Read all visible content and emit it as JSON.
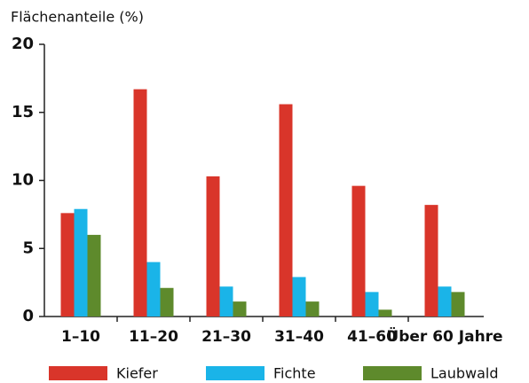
{
  "chart_data": {
    "type": "bar",
    "title": "Flächenanteile (%)",
    "categories": [
      "1–10",
      "11–20",
      "21–30",
      "31–40",
      "41–60",
      "Über 60 Jahre"
    ],
    "series": [
      {
        "name": "Kiefer",
        "color": "#d9352a",
        "values": [
          7.6,
          16.7,
          10.3,
          15.6,
          9.6,
          8.2
        ]
      },
      {
        "name": "Fichte",
        "color": "#1ab4e8",
        "values": [
          7.9,
          4.0,
          2.2,
          2.9,
          1.8,
          2.2
        ]
      },
      {
        "name": "Laubwald",
        "color": "#5e8a2c",
        "values": [
          6.0,
          2.1,
          1.1,
          1.1,
          0.5,
          1.8
        ]
      }
    ],
    "ylim": [
      0,
      20
    ],
    "yticks": [
      0,
      5,
      10,
      15,
      20
    ],
    "grid": false,
    "legend": "bottom"
  }
}
